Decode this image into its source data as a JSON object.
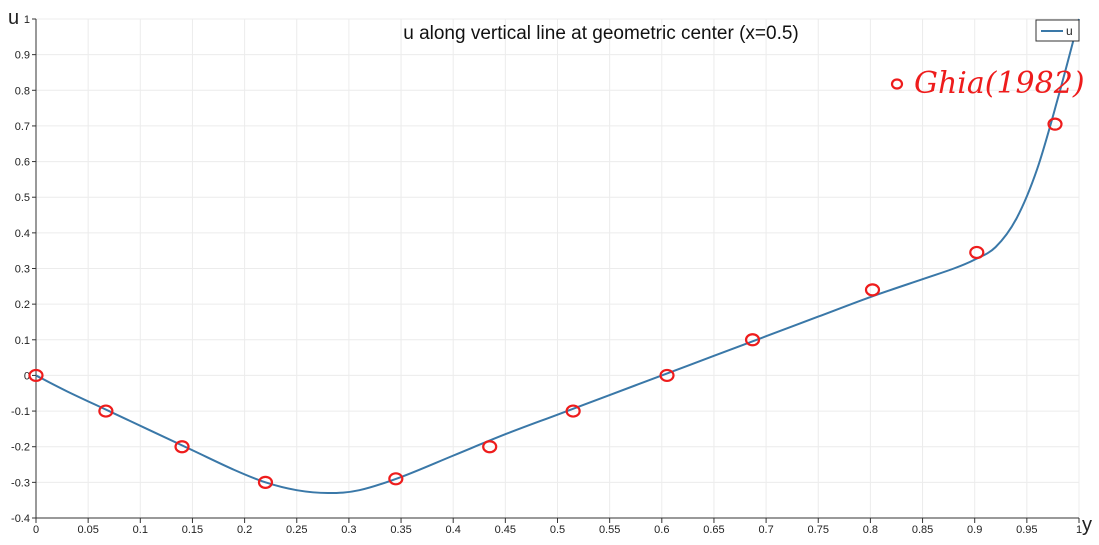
{
  "chart_data": {
    "type": "line",
    "title": "u along vertical line at geometric center (x=0.5)",
    "xlabel": "y",
    "ylabel": "u",
    "xlim": [
      0,
      1
    ],
    "ylim": [
      -0.4,
      1
    ],
    "grid": true,
    "legend_position": "top-right",
    "xticks": [
      "0",
      "0.05",
      "0.1",
      "0.15",
      "0.2",
      "0.25",
      "0.3",
      "0.35",
      "0.4",
      "0.45",
      "0.5",
      "0.55",
      "0.6",
      "0.65",
      "0.7",
      "0.75",
      "0.8",
      "0.85",
      "0.9",
      "0.95",
      "1"
    ],
    "yticks": [
      "-0.4",
      "-0.3",
      "-0.2",
      "-0.1",
      "0",
      "0.1",
      "0.2",
      "0.3",
      "0.4",
      "0.5",
      "0.6",
      "0.7",
      "0.8",
      "0.9",
      "1"
    ],
    "series": [
      {
        "name": "u",
        "color": "#3a78a8",
        "x": [
          0,
          0.03,
          0.07,
          0.11,
          0.15,
          0.19,
          0.22,
          0.25,
          0.28,
          0.31,
          0.35,
          0.4,
          0.45,
          0.5,
          0.55,
          0.6,
          0.65,
          0.7,
          0.75,
          0.8,
          0.85,
          0.88,
          0.9,
          0.92,
          0.94,
          0.96,
          0.98,
          1.0
        ],
        "y": [
          0,
          -0.045,
          -0.1,
          -0.155,
          -0.21,
          -0.265,
          -0.3,
          -0.322,
          -0.33,
          -0.322,
          -0.285,
          -0.225,
          -0.165,
          -0.11,
          -0.055,
          0,
          0.055,
          0.11,
          0.165,
          0.22,
          0.27,
          0.3,
          0.325,
          0.36,
          0.44,
          0.58,
          0.78,
          1.0
        ]
      }
    ],
    "reference": {
      "label": "Ghia(1982)",
      "color": "#ee1c1c",
      "points": [
        {
          "x": 0.0,
          "y": 0.0
        },
        {
          "x": 0.067,
          "y": -0.1
        },
        {
          "x": 0.14,
          "y": -0.2
        },
        {
          "x": 0.22,
          "y": -0.3
        },
        {
          "x": 0.345,
          "y": -0.29
        },
        {
          "x": 0.435,
          "y": -0.2
        },
        {
          "x": 0.515,
          "y": -0.1
        },
        {
          "x": 0.605,
          "y": 0.0
        },
        {
          "x": 0.687,
          "y": 0.1
        },
        {
          "x": 0.802,
          "y": 0.24
        },
        {
          "x": 0.902,
          "y": 0.345
        },
        {
          "x": 0.977,
          "y": 0.705
        }
      ]
    }
  }
}
